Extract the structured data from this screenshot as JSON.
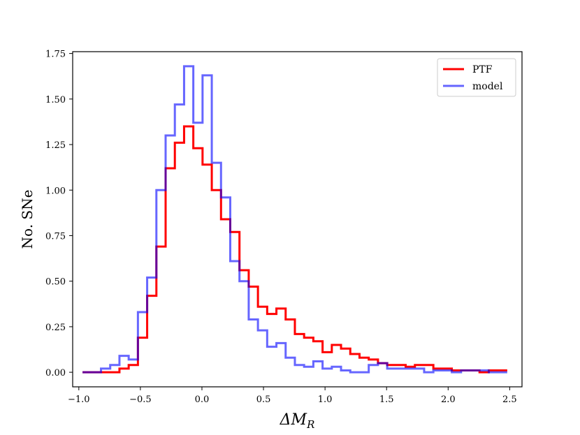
{
  "chart_data": {
    "type": "line",
    "style": "step-histogram",
    "xlabel": "ΔM_R",
    "ylabel": "No. SNe",
    "xlim": [
      -1.05,
      2.6
    ],
    "ylim": [
      -0.08,
      1.76
    ],
    "grid": false,
    "legend_position": "top-right",
    "x_ticks": [
      -1.0,
      -0.5,
      0.0,
      0.5,
      1.0,
      1.5,
      2.0,
      2.5
    ],
    "x_tick_labels": [
      "−1.0",
      "−0.5",
      "0.0",
      "0.5",
      "1.0",
      "1.5",
      "2.0",
      "2.5"
    ],
    "y_ticks": [
      0.0,
      0.25,
      0.5,
      0.75,
      1.0,
      1.25,
      1.5,
      1.75
    ],
    "y_tick_labels": [
      "0.00",
      "0.25",
      "0.50",
      "0.75",
      "1.00",
      "1.25",
      "1.50",
      "1.75"
    ],
    "bin_edges": [
      -0.97,
      -0.895,
      -0.82,
      -0.745,
      -0.67,
      -0.595,
      -0.52,
      -0.445,
      -0.37,
      -0.295,
      -0.22,
      -0.145,
      -0.07,
      0.005,
      0.08,
      0.155,
      0.23,
      0.305,
      0.38,
      0.455,
      0.53,
      0.605,
      0.68,
      0.755,
      0.83,
      0.905,
      0.98,
      1.055,
      1.13,
      1.205,
      1.28,
      1.355,
      1.43,
      1.505,
      1.58,
      1.655,
      1.73,
      1.805,
      1.88,
      1.955,
      2.03,
      2.105,
      2.18,
      2.255,
      2.33,
      2.405,
      2.48
    ],
    "series": [
      {
        "name": "PTF",
        "color": "#ff0000",
        "opacity": 1.0,
        "values": [
          0.0,
          0.0,
          0.0,
          0.0,
          0.02,
          0.04,
          0.19,
          0.42,
          0.69,
          1.12,
          1.26,
          1.35,
          1.23,
          1.14,
          1.0,
          0.84,
          0.77,
          0.56,
          0.47,
          0.36,
          0.32,
          0.35,
          0.29,
          0.21,
          0.19,
          0.17,
          0.11,
          0.15,
          0.13,
          0.1,
          0.08,
          0.07,
          0.05,
          0.04,
          0.04,
          0.03,
          0.04,
          0.04,
          0.02,
          0.02,
          0.01,
          0.01,
          0.01,
          0.0,
          0.01,
          0.01
        ]
      },
      {
        "name": "model",
        "color": "#0000ff",
        "opacity": 0.6,
        "values": [
          0.0,
          0.0,
          0.02,
          0.04,
          0.09,
          0.07,
          0.33,
          0.52,
          1.0,
          1.3,
          1.47,
          1.68,
          1.37,
          1.63,
          1.15,
          0.96,
          0.61,
          0.5,
          0.29,
          0.23,
          0.14,
          0.16,
          0.08,
          0.04,
          0.03,
          0.06,
          0.02,
          0.03,
          0.01,
          0.0,
          0.0,
          0.04,
          0.05,
          0.02,
          0.02,
          0.02,
          0.02,
          0.0,
          0.01,
          0.01,
          0.0,
          0.01,
          0.01,
          0.01,
          0.0,
          0.0
        ]
      }
    ]
  }
}
